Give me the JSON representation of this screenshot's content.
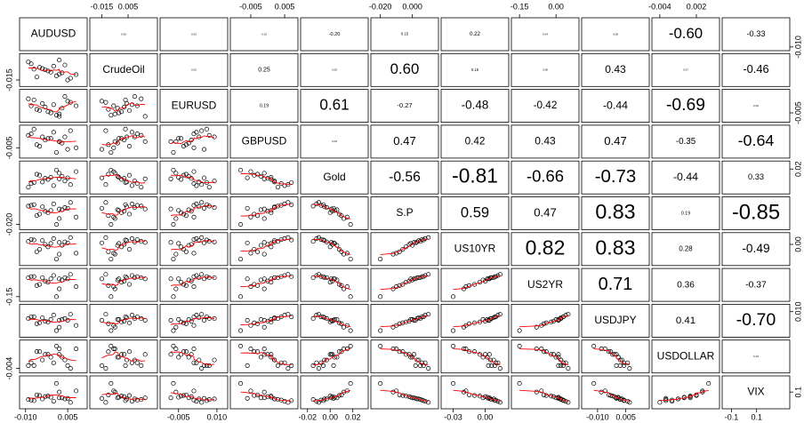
{
  "chart_data": {
    "type": "pairs",
    "variables": [
      {
        "name": "AUDUSD",
        "lim": [
          -0.0115,
          0.0113
        ],
        "xticks": [
          {
            "value": -0.01,
            "label": "-0.010"
          },
          0.005
        ],
        "yticks": [
          {
            "value": -0.01,
            "label": "-0.010"
          }
        ],
        "values": [
          -0.006,
          -0.004,
          0.002,
          -0.008,
          0.005,
          -0.002,
          0.0,
          0.003,
          -0.009,
          0.001,
          -0.003,
          0.006,
          -0.005,
          0.004,
          -0.001,
          0.008,
          -0.007,
          0.002
        ]
      },
      {
        "name": "CrudeOil",
        "lim": [
          -0.0228,
          0.026
        ],
        "xticks": [
          -0.015,
          0.005
        ],
        "yticks": [
          -0.015
        ],
        "values": [
          -0.01,
          0.004,
          -0.005,
          0.012,
          -0.015,
          0.0,
          0.008,
          -0.003,
          0.015,
          -0.008,
          0.002,
          -0.012,
          0.006,
          0.01,
          -0.002,
          -0.006,
          0.003,
          0.018
        ]
      },
      {
        "name": "EURUSD",
        "lim": [
          -0.0115,
          0.0135
        ],
        "xticks": [
          -0.005,
          {
            "value": 0.01,
            "label": "0.010"
          }
        ],
        "yticks": [
          -0.005
        ],
        "values": [
          -0.002,
          0.003,
          -0.006,
          0.001,
          0.005,
          -0.004,
          0.002,
          -0.001,
          0.007,
          -0.007,
          0.0,
          0.004,
          -0.003,
          0.009,
          -0.005,
          0.001,
          0.006,
          -0.008
        ]
      },
      {
        "name": "GBPUSD",
        "lim": [
          -0.0105,
          0.0084
        ],
        "xticks": [
          -0.005,
          0.005
        ],
        "yticks": [
          -0.005
        ],
        "values": [
          -0.003,
          0.002,
          -0.001,
          0.004,
          -0.006,
          0.001,
          0.005,
          -0.002,
          0.003,
          -0.008,
          0.0,
          0.006,
          -0.004,
          0.002,
          0.001,
          -0.005,
          0.007,
          -0.001
        ]
      },
      {
        "name": "Gold",
        "lim": [
          -0.0245,
          0.032
        ],
        "xticks": [
          -0.02,
          {
            "value": 0,
            "label": "0.00"
          },
          0.02
        ],
        "yticks": [
          0.02
        ],
        "values": [
          0.01,
          -0.005,
          0.012,
          -0.008,
          0.003,
          0.0,
          -0.012,
          0.006,
          -0.015,
          0.018,
          0.002,
          -0.01,
          0.008,
          -0.003,
          0.004,
          0.015,
          -0.006,
          0.001
        ]
      },
      {
        "name": "S.P",
        "lim": [
          -0.0248,
          0.0152
        ],
        "xticks": [
          {
            "value": -0.02,
            "label": "-0.020"
          },
          {
            "value": 0,
            "label": "0.000"
          }
        ],
        "yticks": [
          {
            "value": -0.02,
            "label": "-0.020"
          }
        ],
        "values": [
          -0.008,
          0.004,
          -0.012,
          0.006,
          0.002,
          -0.004,
          0.008,
          0.0,
          0.005,
          -0.02,
          -0.002,
          0.01,
          -0.006,
          0.003,
          -0.001,
          -0.01,
          0.007,
          0.001
        ]
      },
      {
        "name": "US10YR",
        "lim": [
          -0.0396,
          0.0204
        ],
        "xticks": [
          -0.03,
          {
            "value": 0,
            "label": "0.00"
          }
        ],
        "yticks": [
          {
            "value": 0,
            "label": "0.00"
          }
        ],
        "values": [
          -0.015,
          0.008,
          -0.02,
          0.01,
          0.003,
          -0.005,
          0.012,
          -0.002,
          0.006,
          -0.03,
          0.0,
          0.014,
          -0.01,
          0.005,
          0.002,
          -0.018,
          0.009,
          0.004
        ]
      },
      {
        "name": "US2YR",
        "lim": [
          -0.176,
          0.087
        ],
        "xticks": [
          -0.15,
          {
            "value": 0,
            "label": "0.00"
          }
        ],
        "yticks": [
          -0.15
        ],
        "values": [
          -0.05,
          0.02,
          -0.08,
          0.03,
          0.01,
          -0.02,
          0.04,
          0.0,
          0.02,
          -0.15,
          -0.01,
          0.05,
          -0.04,
          0.02,
          0.01,
          -0.06,
          0.03,
          0.01
        ]
      },
      {
        "name": "USDJPY",
        "lim": [
          -0.0175,
          0.0165
        ],
        "xticks": [
          {
            "value": -0.01,
            "label": "-0.010"
          },
          0.005
        ],
        "yticks": [
          {
            "value": 0.01,
            "label": "0.010"
          }
        ],
        "values": [
          -0.004,
          0.003,
          -0.008,
          0.004,
          0.0,
          -0.002,
          0.006,
          0.001,
          0.002,
          -0.012,
          -0.001,
          0.007,
          -0.003,
          0.002,
          0.001,
          -0.006,
          0.004,
          0.0
        ]
      },
      {
        "name": "USDOLLAR",
        "lim": [
          -0.005,
          0.0055
        ],
        "xticks": [
          -0.004,
          0.002
        ],
        "yticks": [
          -0.004
        ],
        "values": [
          0.002,
          -0.001,
          0.003,
          -0.002,
          -0.003,
          0.001,
          -0.002,
          0.0,
          -0.003,
          0.004,
          0.001,
          -0.004,
          0.002,
          -0.001,
          0.0,
          0.003,
          -0.003,
          0.001
        ]
      },
      {
        "name": "VIX",
        "lim": [
          -0.16,
          0.35
        ],
        "xticks": [
          -0.1,
          0.1
        ],
        "yticks": [
          0.1
        ],
        "values": [
          0.05,
          -0.02,
          0.1,
          -0.04,
          -0.01,
          0.03,
          -0.06,
          0.0,
          -0.03,
          0.25,
          0.02,
          -0.08,
          0.04,
          -0.02,
          0.01,
          0.12,
          -0.05,
          0.0
        ]
      }
    ],
    "correlations": [
      [
        null,
        0.05,
        0.03,
        0.1,
        -0.2,
        0.15,
        0.22,
        0.04,
        0.08,
        -0.6,
        -0.33
      ],
      [
        null,
        null,
        0.02,
        0.25,
        0.05,
        0.6,
        0.15,
        0.08,
        0.43,
        0.07,
        -0.46
      ],
      [
        null,
        null,
        null,
        0.19,
        0.61,
        -0.27,
        -0.48,
        -0.42,
        -0.44,
        -0.69,
        0.06
      ],
      [
        null,
        null,
        null,
        null,
        0.03,
        0.47,
        0.42,
        0.43,
        0.47,
        -0.35,
        -0.64
      ],
      [
        null,
        null,
        null,
        null,
        null,
        -0.56,
        -0.81,
        -0.66,
        -0.73,
        -0.44,
        0.33
      ],
      [
        null,
        null,
        null,
        null,
        null,
        null,
        0.59,
        0.47,
        0.83,
        0.19,
        -0.85
      ],
      [
        null,
        null,
        null,
        null,
        null,
        null,
        null,
        0.82,
        0.83,
        0.28,
        -0.49
      ],
      [
        null,
        null,
        null,
        null,
        null,
        null,
        null,
        null,
        0.71,
        0.36,
        -0.37
      ],
      [
        null,
        null,
        null,
        null,
        null,
        null,
        null,
        null,
        null,
        0.41,
        -0.7
      ],
      [
        null,
        null,
        null,
        null,
        null,
        null,
        null,
        null,
        null,
        null,
        0.1
      ],
      [
        null,
        null,
        null,
        null,
        null,
        null,
        null,
        null,
        null,
        null,
        null
      ]
    ],
    "correlation_labels": [
      [
        null,
        "0.05",
        "0.03",
        "0.10",
        "-0.20",
        "0.15",
        "0.22",
        "0.04",
        "0.08",
        "-0.60",
        "-0.33"
      ],
      [
        null,
        null,
        "0.02",
        "0.25",
        "0.05",
        "0.60",
        "0.15",
        "0.08",
        "0.43",
        "0.07",
        "-0.46"
      ],
      [
        null,
        null,
        null,
        "0.19",
        "0.61",
        "-0.27",
        "-0.48",
        "-0.42",
        "-0.44",
        "-0.69",
        "0.06"
      ],
      [
        null,
        null,
        null,
        null,
        "0.03",
        "0.47",
        "0.42",
        "0.43",
        "0.47",
        "-0.35",
        "-0.64"
      ],
      [
        null,
        null,
        null,
        null,
        null,
        "-0.56",
        "-0.81",
        "-0.66",
        "-0.73",
        "-0.44",
        "0.33"
      ],
      [
        null,
        null,
        null,
        null,
        null,
        null,
        "0.59",
        "0.47",
        "0.83",
        "0.19",
        "-0.85"
      ],
      [
        null,
        null,
        null,
        null,
        null,
        null,
        null,
        "0.82",
        "0.83",
        "0.28",
        "-0.49"
      ],
      [
        null,
        null,
        null,
        null,
        null,
        null,
        null,
        null,
        "0.71",
        "0.36",
        "-0.37"
      ],
      [
        null,
        null,
        null,
        null,
        null,
        null,
        null,
        null,
        null,
        "0.41",
        "-0.70"
      ],
      [
        null,
        null,
        null,
        null,
        null,
        null,
        null,
        null,
        null,
        null,
        "0.10"
      ],
      [
        null,
        null,
        null,
        null,
        null,
        null,
        null,
        null,
        null,
        null,
        null
      ]
    ],
    "point_color": "#000000",
    "smooth_color": "#ff0000"
  }
}
